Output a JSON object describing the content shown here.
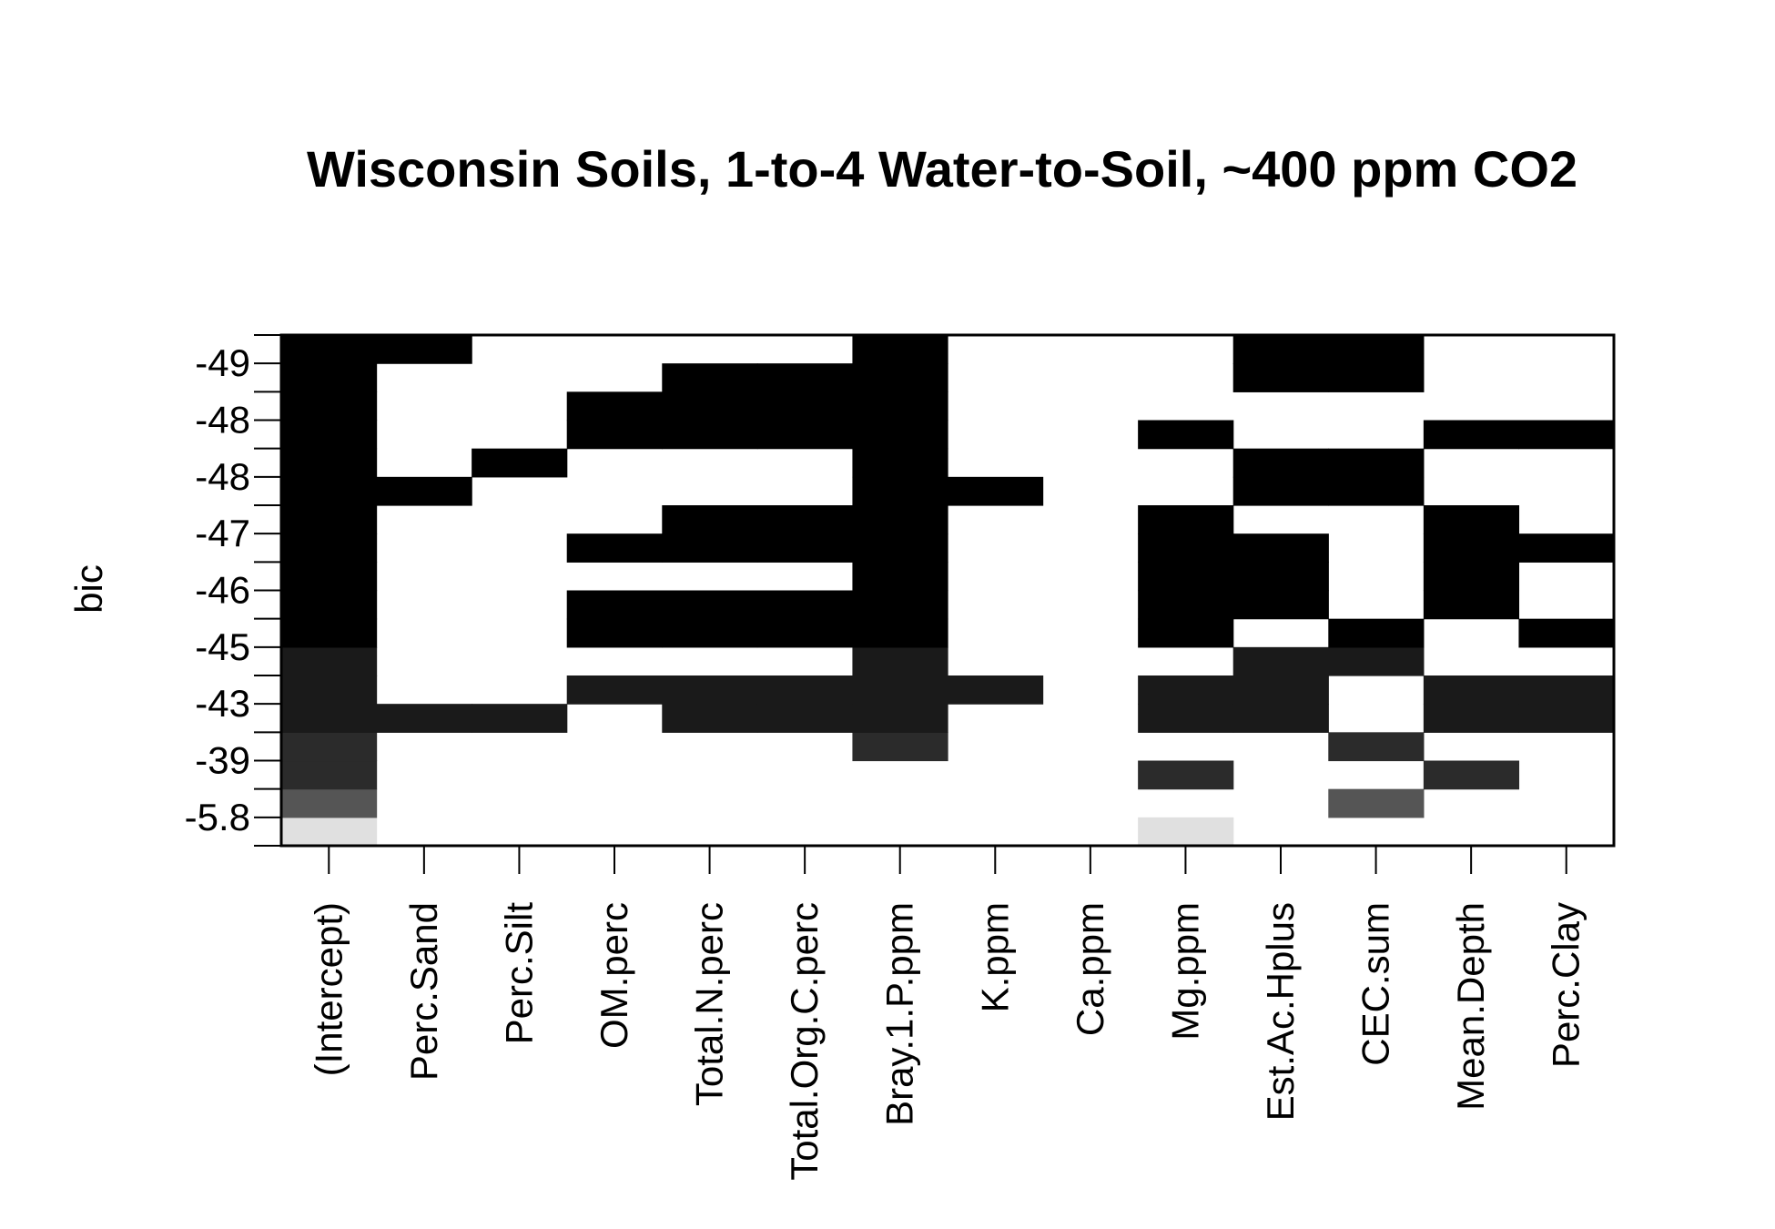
{
  "chart_data": {
    "type": "heatmap",
    "title": "Wisconsin Soils, 1-to-4 Water-to-Soil, ~400 ppm CO2",
    "xlabel": "",
    "ylabel": "bic",
    "columns": [
      "(Intercept)",
      "Perc.Sand",
      "Perc.Silt",
      "OM.perc",
      "Total.N.perc",
      "Total.Org.C.perc",
      "Bray.1.P.ppm",
      "K.ppm",
      "Ca.ppm",
      "Mg.ppm",
      "Est.Ac.Hplus",
      "CEC.sum",
      "Mean.Depth",
      "Perc.Clay"
    ],
    "y_tick_labels": [
      "-5.8",
      "-39",
      "-43",
      "-45",
      "-46",
      "-47",
      "-48",
      "-48",
      "-49"
    ],
    "rows": [
      {
        "included": [
          0,
          9
        ]
      },
      {
        "included": [
          0,
          11
        ]
      },
      {
        "included": [
          0,
          9,
          12
        ]
      },
      {
        "included": [
          0,
          6,
          11
        ]
      },
      {
        "included": [
          0,
          1,
          2,
          4,
          5,
          6,
          9,
          10,
          12,
          13
        ]
      },
      {
        "included": [
          0,
          3,
          4,
          5,
          6,
          7,
          9,
          10,
          12,
          13
        ]
      },
      {
        "included": [
          0,
          6,
          10,
          11
        ]
      },
      {
        "included": [
          0,
          3,
          4,
          5,
          6,
          9,
          11,
          13
        ]
      },
      {
        "included": [
          0,
          3,
          4,
          5,
          6,
          9,
          10,
          12
        ]
      },
      {
        "included": [
          0,
          6,
          9,
          10,
          12
        ]
      },
      {
        "included": [
          0,
          3,
          4,
          5,
          6,
          9,
          10,
          12,
          13
        ]
      },
      {
        "included": [
          0,
          4,
          5,
          6,
          9,
          12
        ]
      },
      {
        "included": [
          0,
          1,
          6,
          7,
          10,
          11
        ]
      },
      {
        "included": [
          0,
          2,
          6,
          10,
          11
        ]
      },
      {
        "included": [
          0,
          3,
          4,
          5,
          6,
          9,
          12,
          13
        ]
      },
      {
        "included": [
          0,
          3,
          4,
          5,
          6
        ]
      },
      {
        "included": [
          0,
          4,
          5,
          6,
          10,
          11
        ]
      },
      {
        "included": [
          0,
          1,
          6,
          10,
          11
        ]
      }
    ],
    "row_band_shades": [
      "#e0e0e0",
      "#555555",
      "#2b2b2b",
      "#2b2b2b",
      "#1a1a1a",
      "#1a1a1a",
      "#1a1a1a",
      "#000000",
      "#000000",
      "#000000",
      "#000000",
      "#000000",
      "#000000",
      "#000000",
      "#000000",
      "#000000",
      "#000000",
      "#000000"
    ],
    "grid": false,
    "legend": "none"
  }
}
